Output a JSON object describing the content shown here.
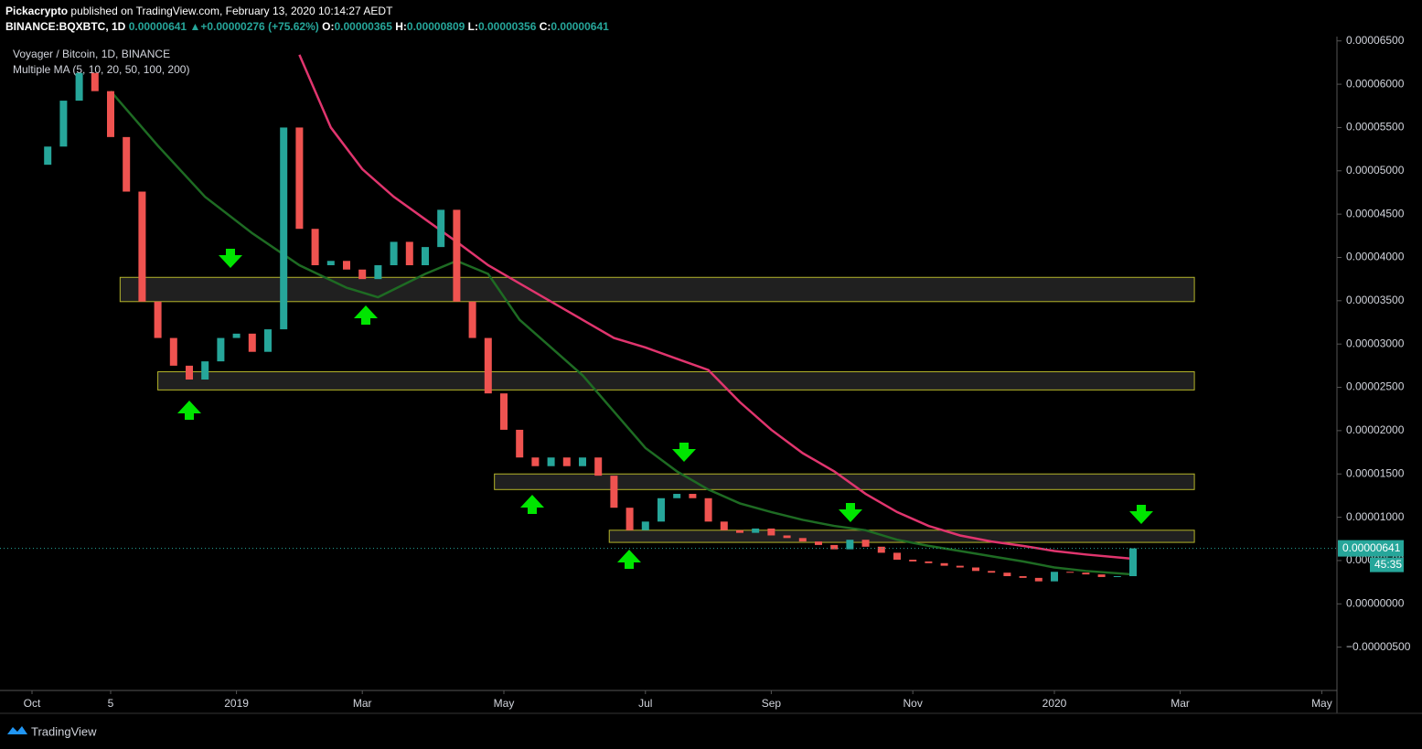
{
  "header": {
    "author": "Pickacrypto",
    "published": "published on TradingView.com, February 13, 2020 10:14:27 AEDT",
    "symbol": "BINANCE:BQXBTC, 1D",
    "last": "0.00000641",
    "arrow": "▲",
    "change": "+0.00000276 (+75.62%)",
    "ohlc": [
      {
        "key": "O:",
        "value": "0.00000365"
      },
      {
        "key": "H:",
        "value": "0.00000809"
      },
      {
        "key": "L:",
        "value": "0.00000356"
      },
      {
        "key": "C:",
        "value": "0.00000641"
      }
    ]
  },
  "footer": {
    "brand": "TradingView"
  },
  "chart_data": {
    "type": "candlestick",
    "title": "Voyager / Bitcoin, 1D, BINANCE",
    "subtitle": "Multiple MA (5, 10, 20, 50, 100, 200)",
    "categories": [
      "Oct",
      null,
      null,
      null,
      null,
      "5",
      null,
      null,
      null,
      null,
      null,
      null,
      null,
      "2019",
      null,
      null,
      null,
      null,
      null,
      null,
      null,
      "Mar",
      null,
      null,
      null,
      null,
      null,
      null,
      null,
      null,
      "May",
      null,
      null,
      null,
      null,
      null,
      null,
      null,
      null,
      "Jul",
      null,
      null,
      null,
      null,
      null,
      null,
      null,
      "Sep",
      null,
      null,
      null,
      null,
      null,
      null,
      null,
      null,
      "Nov",
      null,
      null,
      null,
      null,
      null,
      null,
      null,
      null,
      "2020",
      null,
      null,
      null,
      null,
      null,
      null,
      null,
      "Mar",
      null,
      null,
      null,
      null,
      null,
      null,
      null,
      null,
      "May"
    ],
    "close": [
      5.07e-05,
      5.28e-05,
      5.81e-05,
      6.13e-05,
      5.92e-05,
      5.39e-05,
      4.76e-05,
      3.49e-05,
      3.07e-05,
      2.75e-05,
      2.59e-05,
      2.8e-05,
      3.07e-05,
      3.12e-05,
      2.91e-05,
      3.17e-05,
      5.5e-05,
      4.33e-05,
      3.91e-05,
      3.96e-05,
      3.86e-05,
      3.75e-05,
      3.91e-05,
      4.18e-05,
      3.91e-05,
      4.12e-05,
      4.55e-05,
      3.49e-05,
      3.07e-05,
      2.43e-05,
      2.01e-05,
      1.69e-05,
      1.59e-05,
      1.69e-05,
      1.59e-05,
      1.69e-05,
      1.48e-05,
      1.11e-05,
      8.5e-06,
      9.5e-06,
      1.22e-05,
      1.27e-05,
      1.22e-05,
      9.5e-06,
      8.5e-06,
      8.2e-06,
      8.7e-06,
      7.9e-06,
      7.6e-06,
      7.2e-06,
      6.8e-06,
      6.3e-06,
      7.4e-06,
      6.6e-06,
      5.9e-06,
      5.1e-06,
      4.9e-06,
      4.7e-06,
      4.4e-06,
      4.2e-06,
      3.8e-06,
      3.6e-06,
      3.2e-06,
      3e-06,
      2.6e-06,
      3.7e-06,
      3.6e-06,
      3.4e-06,
      3.1e-06,
      3.2e-06,
      6.41e-06,
      null,
      null,
      null,
      null,
      null,
      null,
      null,
      null,
      null,
      null,
      null,
      null
    ],
    "up_color": "#26a69a",
    "down_color": "#ef5350",
    "ma": [
      {
        "color": "#e0356e",
        "x": [
          17,
          19,
          21,
          23,
          25,
          27,
          29,
          31,
          33,
          35,
          37,
          39,
          41,
          43,
          45,
          47,
          49,
          51,
          53,
          55,
          57,
          59,
          61,
          63,
          65,
          67,
          70
        ],
        "values": [
          6.34e-05,
          5.5e-05,
          5.02e-05,
          4.7e-05,
          4.44e-05,
          4.18e-05,
          3.91e-05,
          3.7e-05,
          3.49e-05,
          3.28e-05,
          3.07e-05,
          2.96e-05,
          2.83e-05,
          2.7e-05,
          2.33e-05,
          2.01e-05,
          1.74e-05,
          1.53e-05,
          1.27e-05,
          1.06e-05,
          9e-06,
          7.9e-06,
          7.2e-06,
          6.7e-06,
          6.1e-06,
          5.7e-06,
          5.2e-06
        ]
      },
      {
        "color": "#1e6b23",
        "x": [
          5,
          8,
          11,
          14,
          17,
          20,
          22,
          25,
          27,
          29,
          31,
          33,
          35,
          37,
          39,
          41,
          43,
          45,
          47,
          49,
          51,
          53,
          55,
          57,
          59,
          61,
          63,
          65,
          67,
          70
        ],
        "values": [
          5.92e-05,
          5.29e-05,
          4.7e-05,
          4.28e-05,
          3.91e-05,
          3.65e-05,
          3.54e-05,
          3.81e-05,
          3.96e-05,
          3.81e-05,
          3.28e-05,
          2.96e-05,
          2.64e-05,
          2.22e-05,
          1.8e-05,
          1.53e-05,
          1.32e-05,
          1.16e-05,
          1.06e-05,
          9.7e-06,
          9e-06,
          8.5e-06,
          7.4e-06,
          6.7e-06,
          6.1e-06,
          5.5e-06,
          4.9e-06,
          4.2e-06,
          3.8e-06,
          3.4e-06
        ]
      }
    ],
    "zones": [
      {
        "low": 3.49e-05,
        "high": 3.77e-05,
        "x": [
          5.6,
          73.9
        ]
      },
      {
        "low": 2.47e-05,
        "high": 2.68e-05,
        "x": [
          8.0,
          73.9
        ]
      },
      {
        "low": 1.32e-05,
        "high": 1.5e-05,
        "x": [
          29.4,
          73.9
        ]
      },
      {
        "low": 7.1e-06,
        "high": 8.5e-06,
        "x": [
          36.7,
          73.9
        ]
      }
    ],
    "zone_color": "#b5b52a",
    "price_tag": "0.00000641",
    "countdown": "45:35",
    "ylim": [
      -1e-05,
      6.55e-05
    ],
    "yticks": [
      {
        "value": -5e-06,
        "label": "−0.00000500"
      },
      {
        "value": 0,
        "label": "0.00000000"
      },
      {
        "value": 5e-06,
        "label": "0.00000500"
      },
      {
        "value": 1e-05,
        "label": "0.00001000"
      },
      {
        "value": 1.5e-05,
        "label": "0.00001500"
      },
      {
        "value": 2e-05,
        "label": "0.00002000"
      },
      {
        "value": 2.5e-05,
        "label": "0.00002500"
      },
      {
        "value": 3e-05,
        "label": "0.00003000"
      },
      {
        "value": 3.5e-05,
        "label": "0.00003500"
      },
      {
        "value": 4e-05,
        "label": "0.00004000"
      },
      {
        "value": 4.5e-05,
        "label": "0.00004500"
      },
      {
        "value": 5e-05,
        "label": "0.00005000"
      },
      {
        "value": 5.5e-05,
        "label": "0.00005500"
      },
      {
        "value": 6e-05,
        "label": "0.00006000"
      },
      {
        "value": 6.5e-05,
        "label": "0.00006500"
      }
    ]
  }
}
